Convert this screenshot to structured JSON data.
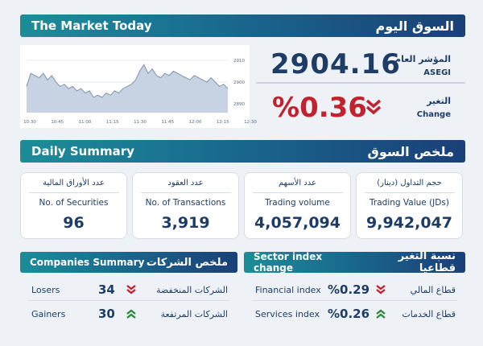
{
  "market": {
    "title_en": "The Market Today",
    "title_ar": "السوق اليوم"
  },
  "index": {
    "label_ar": "المؤشر العام",
    "label_en": "ASEGI",
    "value": "2904.16"
  },
  "change": {
    "label_ar": "التغير",
    "label_en": "Change",
    "value": "%0.36",
    "direction": "down"
  },
  "chart_data": {
    "type": "area",
    "x_ticks": [
      "10:30",
      "10:45",
      "11:00",
      "11:15",
      "11:30",
      "11:45",
      "12:00",
      "12:15",
      "12:30"
    ],
    "y_ticks": [
      "2910",
      "2900",
      "2890"
    ],
    "ylim": [
      2886,
      2914
    ],
    "y": [
      2898,
      2904,
      2903,
      2902,
      2904,
      2901,
      2903,
      2900,
      2898,
      2899,
      2897,
      2898,
      2896,
      2897,
      2895,
      2896,
      2893,
      2894,
      2893,
      2895,
      2894,
      2896,
      2895,
      2897,
      2898,
      2899,
      2901,
      2905,
      2908,
      2904,
      2906,
      2903,
      2902,
      2904,
      2903,
      2905,
      2904,
      2903,
      2902,
      2901,
      2903,
      2902,
      2901,
      2900,
      2902,
      2900,
      2898,
      2899,
      2897
    ]
  },
  "daily": {
    "title_en": "Daily Summary",
    "title_ar": "ملخص السوق",
    "cards": [
      {
        "label_ar": "عدد الأوراق المالية",
        "label_en": "No. of Securities",
        "value": "96"
      },
      {
        "label_ar": "عدد العقود",
        "label_en": "No. of Transactions",
        "value": "3,919"
      },
      {
        "label_ar": "عدد الأسهم",
        "label_en": "Trading volume",
        "value": "4,057,094"
      },
      {
        "label_ar": "حجم التداول (دينار)",
        "label_en": "Trading Value (JDs)",
        "value": "9,942,047"
      }
    ]
  },
  "companies": {
    "title_en": "Companies Summary",
    "title_ar": "ملخص الشركات",
    "rows": [
      {
        "label_en": "Losers",
        "value": "34",
        "label_ar": "الشركات المنخفضة",
        "icon": "chevron-down-icon",
        "color": "#c0232f"
      },
      {
        "label_en": "Gainers",
        "value": "30",
        "label_ar": "الشركات المرتفعة",
        "icon": "chevron-up-icon",
        "color": "#2e8a3c"
      }
    ]
  },
  "sector": {
    "title_en": "Sector index change",
    "title_ar": "نسبة التغير قطاعيا",
    "rows": [
      {
        "label_en": "Financial index",
        "value": "%0.29",
        "label_ar": "قطاع المالي",
        "icon": "chevron-down-icon",
        "color": "#c0232f"
      },
      {
        "label_en": "Services index",
        "value": "%0.26",
        "label_ar": "قطاع الخدمات",
        "icon": "chevron-up-icon",
        "color": "#2e8a3c"
      }
    ]
  },
  "colors": {
    "down": "#c0232f",
    "up": "#2e8a3c",
    "navy": "#1e3d66",
    "chart_fill": "#c7d3e2",
    "chart_line": "#7f94ad"
  }
}
